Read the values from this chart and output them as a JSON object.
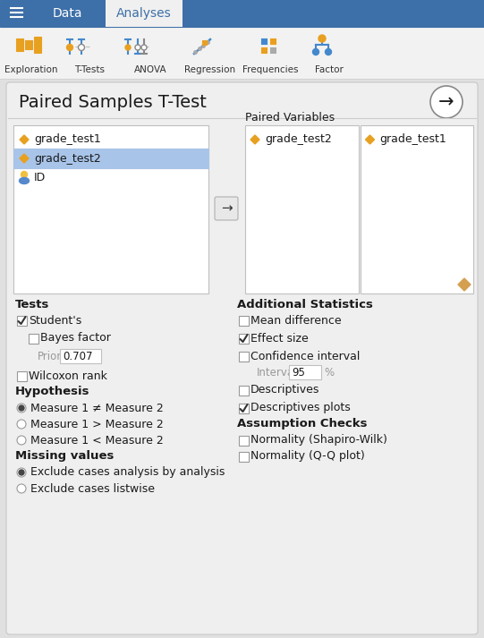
{
  "title": "Paired Samples T-Test",
  "toolbar_bg": "#3d6fa8",
  "toolbar_items": [
    "Exploration",
    "T-Tests",
    "ANOVA",
    "Regression",
    "Frequencies",
    "Factor"
  ],
  "active_tab": "Analyses",
  "inactive_tab": "Data",
  "panel_bg": "#e0e0e0",
  "content_bg": "#efefef",
  "white": "#ffffff",
  "selected_row_bg": "#a8c4e8",
  "variables": [
    "grade_test1",
    "grade_test2",
    "ID"
  ],
  "selected_var": "grade_test2",
  "paired_vars_col1": "grade_test2",
  "paired_vars_col2": "grade_test1",
  "orange": "#e8a020",
  "tests_labels": [
    "Student's",
    "Bayes factor",
    "Wilcoxon rank"
  ],
  "tests_checked": [
    true,
    false,
    false
  ],
  "prior_value": "0.707",
  "additional_labels": [
    "Mean difference",
    "Effect size",
    "Confidence interval",
    "Descriptives",
    "Descriptives plots"
  ],
  "additional_checked": [
    false,
    true,
    false,
    false,
    true
  ],
  "interval_value": "95",
  "hypothesis_labels": [
    "Measure 1 ≠ Measure 2",
    "Measure 1 > Measure 2",
    "Measure 1 < Measure 2"
  ],
  "hypothesis_selected": 0,
  "missing_labels": [
    "Exclude cases analysis by analysis",
    "Exclude cases listwise"
  ],
  "missing_selected": 0,
  "assumption_labels": [
    "Normality (Shapiro-Wilk)",
    "Normality (Q-Q plot)"
  ],
  "assumption_checked": [
    false,
    false
  ],
  "text_dark": "#1a1a1a",
  "text_gray": "#999999",
  "border_color": "#c0c0c0",
  "check_color": "#333333"
}
